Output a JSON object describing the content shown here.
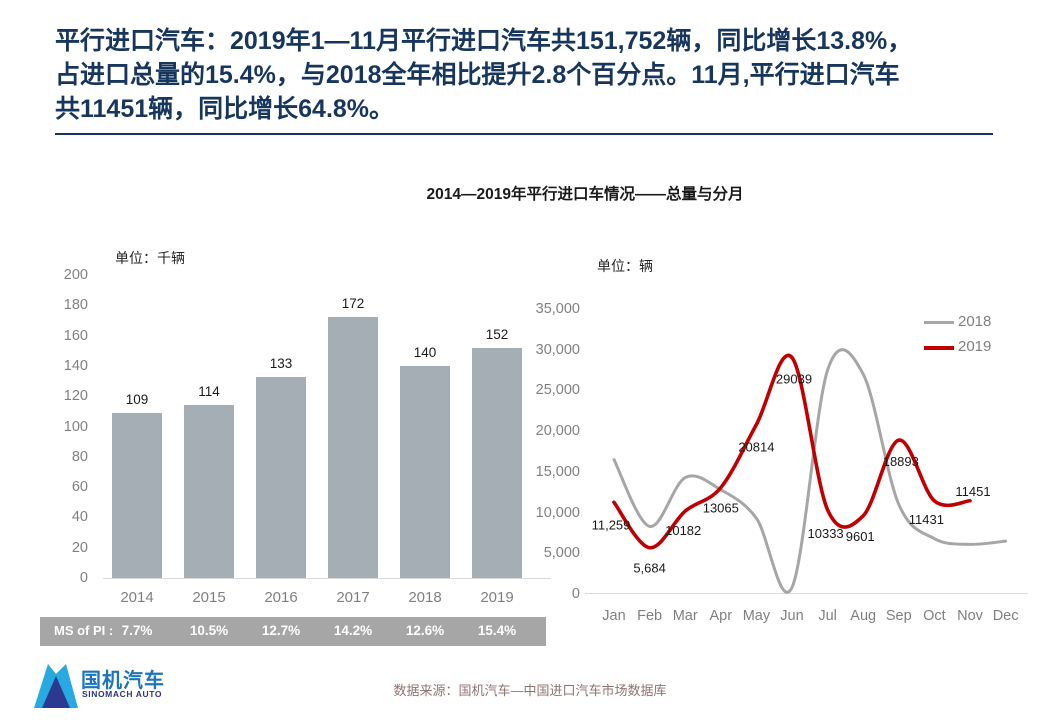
{
  "header": {
    "title_lines": [
      "平行进口汽车：2019年1—11月平行进口汽车共151,752辆，同比增长13.8%，",
      "占进口总量的15.4%，与2018全年相比提升2.8个百分点。11月,平行进口汽车",
      "共11451辆，同比增长64.8%。"
    ]
  },
  "chart_title": "2014—2019年平行进口车情况——总量与分月",
  "chart_data": [
    {
      "type": "bar",
      "unit_label": "单位：千辆",
      "categories": [
        "2014",
        "2015",
        "2016",
        "2017",
        "2018",
        "2019"
      ],
      "values": [
        109,
        114,
        133,
        172,
        140,
        152
      ],
      "y_ticks": [
        "200",
        "180",
        "160",
        "140",
        "120",
        "100",
        "80",
        "60",
        "40",
        "20",
        "0"
      ],
      "ylim": [
        0,
        200
      ],
      "ms_of_pi_label": "MS of PI :",
      "ms_of_pi_values": [
        "7.7%",
        "10.5%",
        "12.7%",
        "14.2%",
        "12.6%",
        "15.4%"
      ]
    },
    {
      "type": "line",
      "unit_label": "单位：辆",
      "x": [
        "Jan",
        "Feb",
        "Mar",
        "Apr",
        "May",
        "Jun",
        "Jul",
        "Aug",
        "Sep",
        "Oct",
        "Nov",
        "Dec"
      ],
      "y_ticks": [
        "35,000",
        "30,000",
        "25,000",
        "20,000",
        "15,000",
        "10,000",
        "5,000",
        "0"
      ],
      "ylim": [
        0,
        35000
      ],
      "legend_position": "top-right",
      "series": [
        {
          "name": "2018",
          "color": "#A6A6A6",
          "estimated_from_pixels": true,
          "values": [
            16500,
            8300,
            14300,
            12800,
            9300,
            800,
            27500,
            27000,
            11000,
            6800,
            6100,
            6500
          ]
        },
        {
          "name": "2019",
          "color": "#C00000",
          "values": [
            11259,
            5684,
            10182,
            13065,
            20814,
            29039,
            10333,
            9601,
            18893,
            11431,
            11451
          ],
          "labels": [
            "11,259",
            "5,684",
            "10182",
            "13065",
            "20814",
            "29039",
            "10333",
            "9601",
            "18893",
            "11431",
            "11451"
          ]
        }
      ]
    }
  ],
  "footer": {
    "logo_cn": "国机汽车",
    "logo_en": "SINOMACH AUTO",
    "source": "数据来源：国机汽车—中国进口汽车市场数据库"
  },
  "colors": {
    "title_navy": "#17365D",
    "bar_gray": "#A5ADB5",
    "band_gray": "#A6A6A6",
    "axis_text_gray": "#808080",
    "series_2018": "#A6A6A6",
    "series_2019": "#C00000",
    "baseline_gray": "#D9D9D9",
    "logo_light_blue": "#29A9E1",
    "logo_dark_blue": "#2B3990",
    "logo_text_blue": "#1C74BA"
  }
}
